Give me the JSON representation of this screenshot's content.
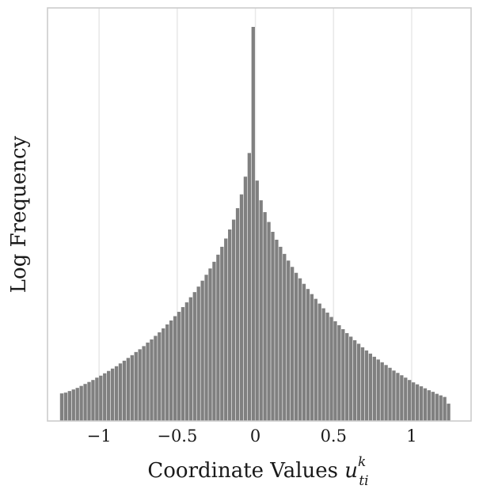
{
  "chart_data": {
    "type": "bar",
    "title": "",
    "xlabel": "Coordinate Values",
    "xlabel_symbol": "u",
    "xlabel_sup": "k",
    "xlabel_sub": "ti",
    "ylabel": "Log Frequency",
    "xlim": [
      -1.33,
      1.38
    ],
    "ylim": [
      0,
      1
    ],
    "y_scale": "log",
    "y_ticks_shown": false,
    "grid": {
      "x": true,
      "y": false
    },
    "legend": "none",
    "bar_color": "#808080",
    "x_ticks": [
      {
        "value": -1,
        "label": "−1"
      },
      {
        "value": -0.5,
        "label": "−0.5"
      },
      {
        "value": 0,
        "label": "0"
      },
      {
        "value": 0.5,
        "label": "0.5"
      },
      {
        "value": 1,
        "label": "1"
      }
    ],
    "bins": {
      "start": -1.25,
      "end": 1.25,
      "count": 100,
      "relative_log_frequency": [
        0.07,
        0.072,
        0.076,
        0.08,
        0.084,
        0.089,
        0.094,
        0.099,
        0.104,
        0.11,
        0.115,
        0.121,
        0.127,
        0.133,
        0.139,
        0.146,
        0.153,
        0.16,
        0.167,
        0.175,
        0.182,
        0.19,
        0.199,
        0.207,
        0.216,
        0.225,
        0.235,
        0.245,
        0.255,
        0.266,
        0.277,
        0.289,
        0.301,
        0.314,
        0.327,
        0.341,
        0.356,
        0.371,
        0.387,
        0.404,
        0.422,
        0.442,
        0.463,
        0.486,
        0.511,
        0.54,
        0.575,
        0.62,
        0.68,
        1.0,
        0.61,
        0.56,
        0.53,
        0.505,
        0.48,
        0.46,
        0.442,
        0.424,
        0.407,
        0.391,
        0.376,
        0.362,
        0.348,
        0.335,
        0.322,
        0.31,
        0.298,
        0.286,
        0.275,
        0.264,
        0.253,
        0.243,
        0.233,
        0.223,
        0.214,
        0.205,
        0.196,
        0.187,
        0.179,
        0.171,
        0.163,
        0.156,
        0.149,
        0.142,
        0.135,
        0.128,
        0.122,
        0.116,
        0.11,
        0.104,
        0.098,
        0.093,
        0.088,
        0.083,
        0.078,
        0.074,
        0.069,
        0.065,
        0.061,
        0.044
      ]
    }
  }
}
